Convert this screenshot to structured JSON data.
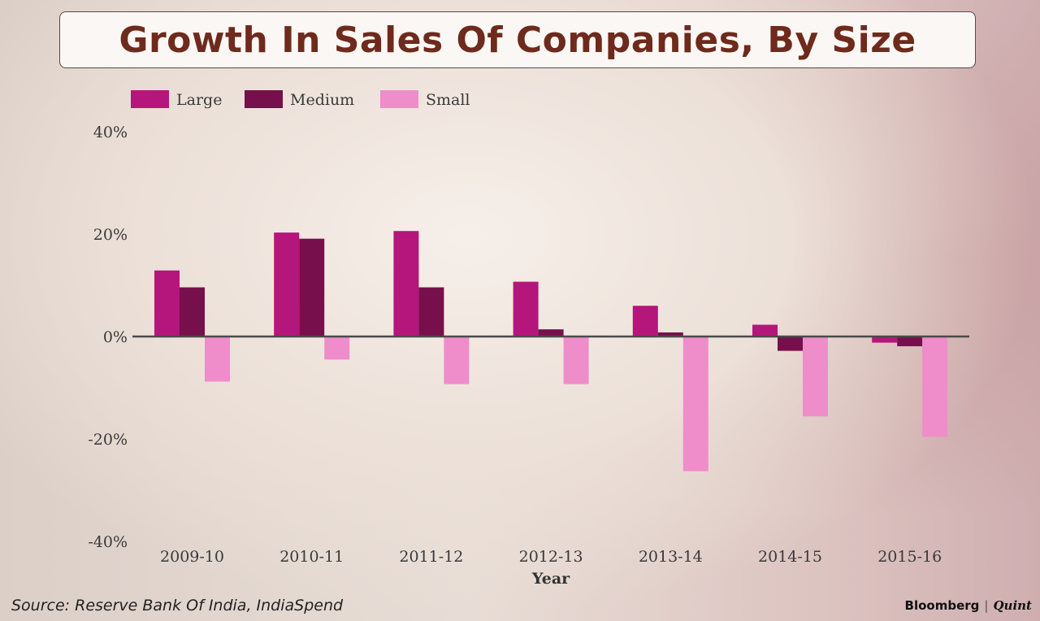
{
  "chart_data": {
    "type": "bar",
    "title": "Growth In Sales Of Companies, By Size",
    "xlabel": "Year",
    "ylabel": "",
    "ylim": [
      -40,
      40
    ],
    "yticks": [
      40,
      20,
      0,
      -20,
      -40
    ],
    "ytick_labels": [
      "40%",
      "20%",
      "0%",
      "-20%",
      "-40%"
    ],
    "legend_position": "top-left",
    "categories": [
      "2009-10",
      "2010-11",
      "2011-12",
      "2012-13",
      "2013-14",
      "2014-15",
      "2015-16"
    ],
    "series": [
      {
        "name": "Large",
        "color": "#b5167b",
        "values": [
          12.9,
          20.3,
          20.6,
          10.7,
          6.0,
          2.3,
          -1.2
        ]
      },
      {
        "name": "Medium",
        "color": "#760f4c",
        "values": [
          9.6,
          19.1,
          9.6,
          1.4,
          0.8,
          -2.8,
          -1.9
        ]
      },
      {
        "name": "Small",
        "color": "#ee8dca",
        "values": [
          -8.8,
          -4.5,
          -9.3,
          -9.3,
          -26.3,
          -15.6,
          -19.6
        ]
      }
    ]
  },
  "footer": {
    "source": "Source: Reserve Bank Of India, IndiaSpend",
    "brand_primary": "Bloomberg",
    "brand_separator": "|",
    "brand_secondary": "Quint"
  }
}
